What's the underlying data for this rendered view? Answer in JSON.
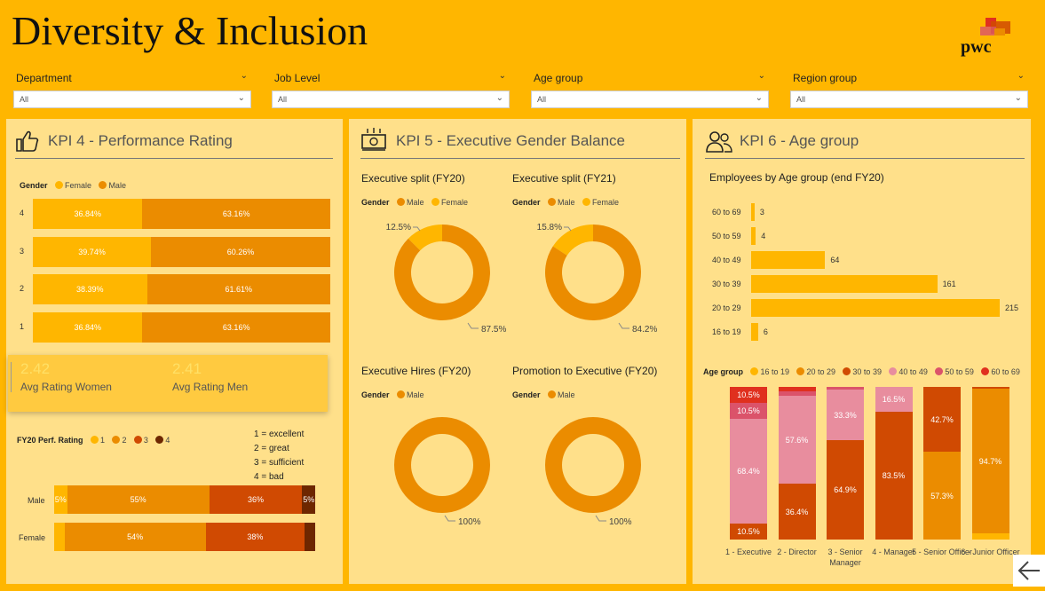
{
  "header": {
    "title": "Diversity & Inclusion",
    "logo_text": "pwc"
  },
  "filters": [
    {
      "label": "Department",
      "value": "All"
    },
    {
      "label": "Job Level",
      "value": "All"
    },
    {
      "label": "Age group",
      "value": "All"
    },
    {
      "label": "Region group",
      "value": "All"
    }
  ],
  "colors": {
    "female": "#FFB600",
    "male": "#EB8C00",
    "r3": "#D04A02",
    "r4": "#6E2700",
    "age_16_19": "#FFB600",
    "age_20_29": "#EB8C00",
    "age_30_39": "#D04A02",
    "age_40_49": "#E88D9E",
    "age_50_59": "#DB536A",
    "age_60_69": "#E0301E"
  },
  "kpi4": {
    "title": "KPI 4 - Performance Rating",
    "gender_legend": {
      "label": "Gender",
      "female": "Female",
      "male": "Male"
    },
    "rating_rows": [
      {
        "label": "4",
        "female_pct": 36.84,
        "female_label": "36.84%",
        "male_label": "63.16%"
      },
      {
        "label": "3",
        "female_pct": 39.74,
        "female_label": "39.74%",
        "male_label": "60.26%"
      },
      {
        "label": "2",
        "female_pct": 38.39,
        "female_label": "38.39%",
        "male_label": "61.61%"
      },
      {
        "label": "1",
        "female_pct": 36.84,
        "female_label": "36.84%",
        "male_label": "63.16%"
      }
    ],
    "avg_women": {
      "value": "2.42",
      "label": "Avg Rating Women"
    },
    "avg_men": {
      "value": "2.41",
      "label": "Avg Rating Men"
    },
    "perf_legend": {
      "label": "FY20 Perf. Rating",
      "items": [
        "1",
        "2",
        "3",
        "4"
      ]
    },
    "scale": [
      "1 = excellent",
      "2 = great",
      "3 = sufficient",
      "4 = bad"
    ],
    "perf_rows": [
      {
        "label": "Male",
        "segments": [
          {
            "value": 5,
            "label": "5%"
          },
          {
            "value": 55,
            "label": "55%"
          },
          {
            "value": 36,
            "label": "36%"
          },
          {
            "value": 5,
            "label": "5%"
          }
        ]
      },
      {
        "label": "Female",
        "segments": [
          {
            "value": 4,
            "label": ""
          },
          {
            "value": 54,
            "label": "54%"
          },
          {
            "value": 38,
            "label": "38%"
          },
          {
            "value": 4,
            "label": ""
          }
        ]
      }
    ]
  },
  "kpi5": {
    "title": "KPI 5 - Executive Gender Balance",
    "donuts": [
      {
        "title": "Executive split (FY20)",
        "legend_label": "Gender",
        "legend": [
          "Male",
          "Female"
        ],
        "female_pct": 12.5,
        "female_label": "12.5%",
        "male_label": "87.5%"
      },
      {
        "title": "Executive split (FY21)",
        "legend_label": "Gender",
        "legend": [
          "Male",
          "Female"
        ],
        "female_pct": 15.8,
        "female_label": "15.8%",
        "male_label": "84.2%"
      },
      {
        "title": "Executive Hires (FY20)",
        "legend_label": "Gender",
        "legend": [
          "Male"
        ],
        "female_pct": 0,
        "female_label": "",
        "male_label": "100%"
      },
      {
        "title": "Promotion to Executive (FY20)",
        "legend_label": "Gender",
        "legend": [
          "Male"
        ],
        "female_pct": 0,
        "female_label": "",
        "male_label": "100%"
      }
    ]
  },
  "kpi6": {
    "title": "KPI 6 - Age group",
    "bar_title": "Employees by Age group (end FY20)",
    "age_bars": [
      {
        "label": "60 to 69",
        "value": 3
      },
      {
        "label": "50 to 59",
        "value": 4
      },
      {
        "label": "40 to 49",
        "value": 64
      },
      {
        "label": "30 to 39",
        "value": 161
      },
      {
        "label": "20 to 29",
        "value": 215
      },
      {
        "label": "16 to 19",
        "value": 6
      }
    ],
    "age_legend": {
      "label": "Age group",
      "items": [
        "16 to 19",
        "20 to 29",
        "30 to 39",
        "40 to 49",
        "50 to 59",
        "60 to 69"
      ]
    },
    "stacked": [
      {
        "label": "1 - Executive",
        "segments": [
          {
            "key": "age_30_39",
            "value": 10.5,
            "label": "10.5%"
          },
          {
            "key": "age_40_49",
            "value": 68.4,
            "label": "68.4%"
          },
          {
            "key": "age_50_59",
            "value": 10.5,
            "label": "10.5%"
          },
          {
            "key": "age_60_69",
            "value": 10.5,
            "label": "10.5%"
          }
        ]
      },
      {
        "label": "2 - Director",
        "segments": [
          {
            "key": "age_30_39",
            "value": 36.4,
            "label": "36.4%"
          },
          {
            "key": "age_40_49",
            "value": 57.6,
            "label": "57.6%"
          },
          {
            "key": "age_50_59",
            "value": 3.0,
            "label": ""
          },
          {
            "key": "age_60_69",
            "value": 3.0,
            "label": ""
          }
        ]
      },
      {
        "label": "3 - Senior Manager",
        "segments": [
          {
            "key": "age_30_39",
            "value": 64.9,
            "label": "64.9%"
          },
          {
            "key": "age_40_49",
            "value": 33.3,
            "label": "33.3%"
          },
          {
            "key": "age_50_59",
            "value": 1.8,
            "label": ""
          }
        ]
      },
      {
        "label": "4 - Manager",
        "segments": [
          {
            "key": "age_30_39",
            "value": 83.5,
            "label": "83.5%"
          },
          {
            "key": "age_40_49",
            "value": 16.5,
            "label": "16.5%"
          }
        ]
      },
      {
        "label": "5 - Senior Officer",
        "segments": [
          {
            "key": "age_20_29",
            "value": 57.3,
            "label": "57.3%"
          },
          {
            "key": "age_30_39",
            "value": 42.7,
            "label": "42.7%"
          }
        ]
      },
      {
        "label": "6 - Junior Officer",
        "segments": [
          {
            "key": "age_16_19",
            "value": 4.0,
            "label": ""
          },
          {
            "key": "age_20_29",
            "value": 94.7,
            "label": "94.7%"
          },
          {
            "key": "age_30_39",
            "value": 1.3,
            "label": ""
          }
        ]
      }
    ]
  },
  "nav": {
    "back_icon": "arrow-left-icon"
  }
}
